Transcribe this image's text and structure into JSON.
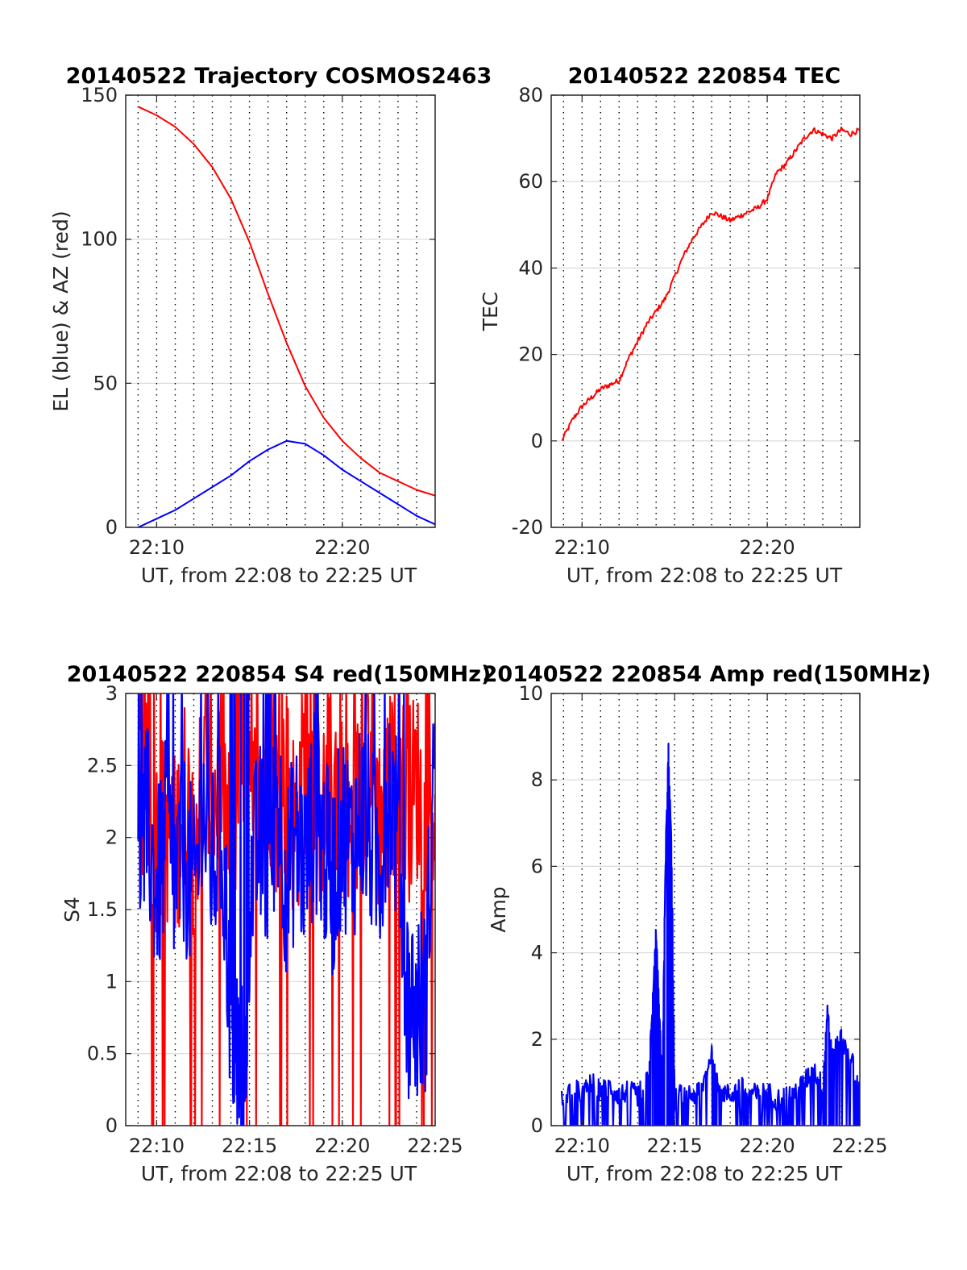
{
  "colors": {
    "az_series": "#ff0000",
    "el_series": "#0000ff",
    "grid_major": "#d9d9d9",
    "grid_minor": "#000000",
    "axes": "#262626",
    "background": "#ffffff"
  },
  "chart_data": [
    {
      "type": "line",
      "title": "20140522 Trajectory COSMOS2463",
      "xlabel": "UT, from 22:08 to 22:25 UT",
      "ylabel": "EL (blue) & AZ (red)",
      "xlim": [
        "22:08:20",
        "22:25:00"
      ],
      "ylim": [
        0,
        150
      ],
      "x_ticks": [
        "22:10",
        "22:20"
      ],
      "y_ticks": [
        "0",
        "50",
        "100",
        "150"
      ],
      "grid": "horizontal major + dotted vertical minute lines",
      "series": [
        {
          "color": "#ff0000",
          "x": [
            "22:09:00",
            "22:10:00",
            "22:11:00",
            "22:12:00",
            "22:13:00",
            "22:14:00",
            "22:15:00",
            "22:16:00",
            "22:17:00",
            "22:18:00",
            "22:19:00",
            "22:20:00",
            "22:21:00",
            "22:22:00",
            "22:23:00",
            "22:24:00",
            "22:25:00"
          ],
          "values": [
            146,
            143,
            139,
            133,
            125,
            114,
            99,
            81,
            64,
            49,
            38,
            30,
            24,
            19,
            16,
            13,
            11
          ]
        },
        {
          "color": "#0000ff",
          "x": [
            "22:09:00",
            "22:10:00",
            "22:11:00",
            "22:12:00",
            "22:13:00",
            "22:14:00",
            "22:15:00",
            "22:16:00",
            "22:17:00",
            "22:18:00",
            "22:19:00",
            "22:20:00",
            "22:21:00",
            "22:22:00",
            "22:23:00",
            "22:24:00",
            "22:25:00"
          ],
          "values": [
            0,
            3,
            6,
            10,
            14,
            18,
            23,
            27,
            30,
            29,
            25,
            20,
            16,
            12,
            8,
            4,
            1
          ]
        }
      ]
    },
    {
      "type": "line",
      "title": "20140522 220854 TEC",
      "xlabel": "UT, from 22:08 to 22:25 UT",
      "ylabel": "TEC",
      "xlim": [
        "22:08:20",
        "22:25:00"
      ],
      "ylim": [
        -20,
        80
      ],
      "x_ticks": [
        "22:10",
        "22:20"
      ],
      "y_ticks": [
        "-20",
        "0",
        "20",
        "40",
        "60",
        "80"
      ],
      "grid": "horizontal major + dotted vertical minute lines",
      "series": [
        {
          "color": "#ff0000",
          "x": [
            "22:08:54",
            "22:09:30",
            "22:10:00",
            "22:10:30",
            "22:11:00",
            "22:11:30",
            "22:12:00",
            "22:12:30",
            "22:13:00",
            "22:13:30",
            "22:14:00",
            "22:14:30",
            "22:15:00",
            "22:15:30",
            "22:16:00",
            "22:16:30",
            "22:17:00",
            "22:17:30",
            "22:18:00",
            "22:18:30",
            "22:19:00",
            "22:19:30",
            "22:20:00",
            "22:20:30",
            "22:21:00",
            "22:21:30",
            "22:22:00",
            "22:22:30",
            "22:23:00",
            "22:23:30",
            "22:24:00",
            "22:24:30",
            "22:25:00"
          ],
          "values": [
            0,
            5,
            8,
            10,
            12,
            13,
            14,
            19,
            23,
            27,
            30,
            33,
            38,
            43,
            47,
            50,
            53,
            52,
            51,
            52,
            53,
            54,
            56,
            62,
            64,
            67,
            70,
            72,
            71,
            70,
            72,
            71,
            72
          ]
        }
      ]
    },
    {
      "type": "line",
      "title": "20140522 220854 S4 red(150MHz)",
      "xlabel": "UT, from 22:08 to 22:25 UT",
      "ylabel": "S4",
      "xlim": [
        "22:08:20",
        "22:25:00"
      ],
      "ylim": [
        0,
        3
      ],
      "x_ticks": [
        "22:10",
        "22:15",
        "22:20",
        "22:25"
      ],
      "y_ticks": [
        "0",
        "0.5",
        "1",
        "1.5",
        "2",
        "2.5",
        "3"
      ],
      "grid": "horizontal major + dotted vertical minute lines",
      "series": [
        {
          "color": "#ff0000",
          "x": [
            "22:09:00",
            "22:09:30",
            "22:10:00",
            "22:10:30",
            "22:11:00",
            "22:11:30",
            "22:12:00",
            "22:12:30",
            "22:13:00",
            "22:13:30",
            "22:14:00",
            "22:14:30",
            "22:15:00",
            "22:15:30",
            "22:16:00",
            "22:16:30",
            "22:17:00",
            "22:17:30",
            "22:18:00",
            "22:18:30",
            "22:19:00",
            "22:19:30",
            "22:20:00",
            "22:20:30",
            "22:21:00",
            "22:21:30",
            "22:22:00",
            "22:22:30",
            "22:23:00",
            "22:23:30",
            "22:24:00",
            "22:24:30",
            "22:25:00"
          ],
          "values": [
            2.6,
            2.2,
            2.0,
            2.1,
            1.9,
            2.3,
            2.0,
            2.4,
            2.2,
            2.5,
            1.8,
            2.7,
            2.1,
            2.3,
            2.6,
            2.2,
            2.4,
            2.0,
            2.6,
            2.3,
            2.1,
            2.5,
            2.2,
            1.9,
            2.4,
            2.6,
            2.1,
            2.3,
            2.5,
            2.2,
            2.4,
            2.0,
            2.3
          ]
        },
        {
          "color": "#0000ff",
          "x": [
            "22:09:00",
            "22:09:30",
            "22:10:00",
            "22:10:30",
            "22:11:00",
            "22:11:30",
            "22:12:00",
            "22:12:30",
            "22:13:00",
            "22:13:30",
            "22:14:00",
            "22:14:15",
            "22:14:30",
            "22:14:45",
            "22:15:00",
            "22:15:30",
            "22:16:00",
            "22:16:30",
            "22:17:00",
            "22:17:30",
            "22:18:00",
            "22:18:30",
            "22:19:00",
            "22:19:30",
            "22:20:00",
            "22:20:30",
            "22:21:00",
            "22:21:30",
            "22:22:00",
            "22:22:30",
            "22:23:00",
            "22:23:30",
            "22:24:00",
            "22:24:30",
            "22:25:00"
          ],
          "values": [
            1.8,
            2.1,
            1.6,
            2.0,
            1.7,
            1.9,
            1.6,
            2.2,
            1.8,
            2.0,
            0.8,
            0.55,
            0.35,
            0.25,
            1.6,
            2.0,
            1.8,
            2.3,
            1.7,
            2.0,
            1.8,
            2.2,
            1.9,
            1.7,
            2.1,
            1.9,
            2.2,
            2.0,
            1.8,
            2.4,
            2.0,
            0.9,
            0.8,
            0.9,
            2.8
          ]
        }
      ]
    },
    {
      "type": "line",
      "title": "20140522 220854 Amp red(150MHz)",
      "xlabel": "UT, from 22:08 to 22:25 UT",
      "ylabel": "Amp",
      "xlim": [
        "22:08:20",
        "22:25:00"
      ],
      "ylim": [
        0,
        10
      ],
      "x_ticks": [
        "22:10",
        "22:15",
        "22:20",
        "22:25"
      ],
      "y_ticks": [
        "0",
        "2",
        "4",
        "6",
        "8",
        "10"
      ],
      "grid": "horizontal major + dotted vertical minute lines",
      "series": [
        {
          "color": "#0000ff",
          "x": [
            "22:08:54",
            "22:09:30",
            "22:10:00",
            "22:10:30",
            "22:11:00",
            "22:11:30",
            "22:12:00",
            "22:12:30",
            "22:13:00",
            "22:13:30",
            "22:13:45",
            "22:14:00",
            "22:14:10",
            "22:14:20",
            "22:14:30",
            "22:14:40",
            "22:14:50",
            "22:15:00",
            "22:15:30",
            "22:16:00",
            "22:16:30",
            "22:17:00",
            "22:17:15",
            "22:17:30",
            "22:18:00",
            "22:18:30",
            "22:19:00",
            "22:19:30",
            "22:20:00",
            "22:20:30",
            "22:21:00",
            "22:21:30",
            "22:22:00",
            "22:22:30",
            "22:23:00",
            "22:23:15",
            "22:23:30",
            "22:23:45",
            "22:24:00",
            "22:24:30",
            "22:25:00"
          ],
          "values": [
            0.6,
            0.9,
            0.7,
            1.0,
            0.8,
            0.9,
            0.7,
            0.8,
            0.7,
            1.0,
            2.2,
            4.5,
            2.5,
            1.0,
            6.0,
            8.7,
            6.5,
            0.6,
            0.8,
            0.7,
            0.9,
            1.7,
            1.2,
            0.8,
            0.7,
            0.9,
            0.8,
            0.7,
            0.8,
            0.6,
            0.7,
            0.8,
            1.0,
            1.3,
            0.9,
            2.7,
            1.5,
            1.9,
            2.0,
            1.6,
            0.8
          ]
        }
      ]
    }
  ]
}
